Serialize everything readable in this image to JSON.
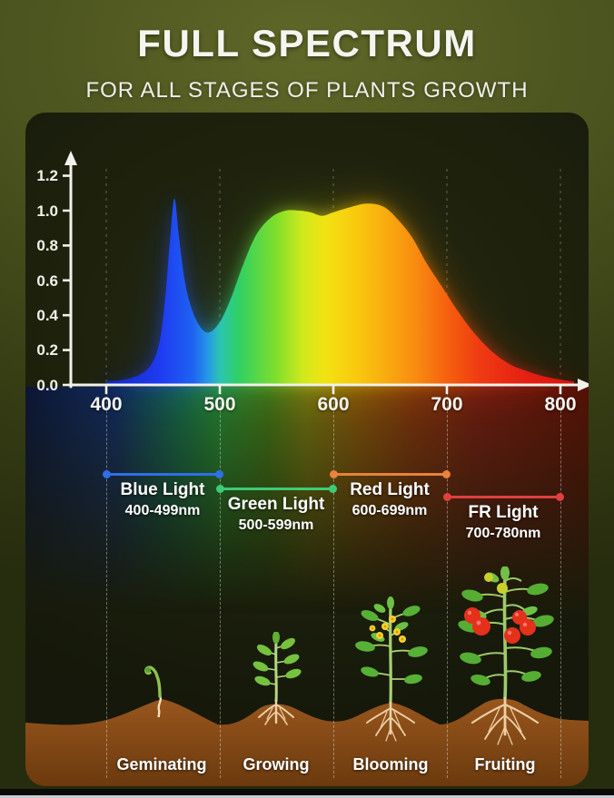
{
  "header": {
    "title": "FULL SPECTRUM",
    "subtitle": "FOR ALL STAGES OF PLANTS GROWTH"
  },
  "chart_data": {
    "type": "area",
    "title": "Full spectrum light intensity curve",
    "xlabel": "",
    "ylabel": "",
    "xlim": [
      400,
      800
    ],
    "ylim": [
      0,
      1.2
    ],
    "xticks": [
      "400",
      "500",
      "600",
      "700",
      "800"
    ],
    "yticks": [
      "0.0",
      "0.2",
      "0.4",
      "0.6",
      "0.8",
      "1.0",
      "1.2"
    ],
    "grid": "dashed-vertical",
    "legend": "none",
    "series": [
      {
        "name": "spectrum",
        "points": [
          [
            400,
            0.02
          ],
          [
            415,
            0.03
          ],
          [
            430,
            0.06
          ],
          [
            440,
            0.12
          ],
          [
            447,
            0.25
          ],
          [
            452,
            0.5
          ],
          [
            456,
            0.82
          ],
          [
            460,
            1.07
          ],
          [
            464,
            0.85
          ],
          [
            469,
            0.6
          ],
          [
            475,
            0.44
          ],
          [
            482,
            0.34
          ],
          [
            490,
            0.3
          ],
          [
            500,
            0.36
          ],
          [
            510,
            0.5
          ],
          [
            520,
            0.68
          ],
          [
            532,
            0.86
          ],
          [
            545,
            0.96
          ],
          [
            558,
            1.0
          ],
          [
            570,
            1.0
          ],
          [
            580,
            0.99
          ],
          [
            590,
            0.97
          ],
          [
            600,
            0.99
          ],
          [
            615,
            1.02
          ],
          [
            630,
            1.04
          ],
          [
            645,
            1.02
          ],
          [
            658,
            0.94
          ],
          [
            670,
            0.84
          ],
          [
            682,
            0.7
          ],
          [
            695,
            0.57
          ],
          [
            710,
            0.42
          ],
          [
            725,
            0.29
          ],
          [
            740,
            0.19
          ],
          [
            755,
            0.12
          ],
          [
            770,
            0.08
          ],
          [
            785,
            0.05
          ],
          [
            800,
            0.03
          ],
          [
            812,
            0.02
          ]
        ]
      }
    ]
  },
  "bands": [
    {
      "name": "Blue Light",
      "range": "400-499nm",
      "color": "#2f6fe8"
    },
    {
      "name": "Green Light",
      "range": "500-599nm",
      "color": "#3ecb76"
    },
    {
      "name": "Red Light",
      "range": "600-699nm",
      "color": "#e8823c"
    },
    {
      "name": "FR Light",
      "range": "700-780nm",
      "color": "#e04040"
    }
  ],
  "stages": [
    {
      "label": "Geminating"
    },
    {
      "label": "Growing"
    },
    {
      "label": "Blooming"
    },
    {
      "label": "Fruiting"
    }
  ]
}
